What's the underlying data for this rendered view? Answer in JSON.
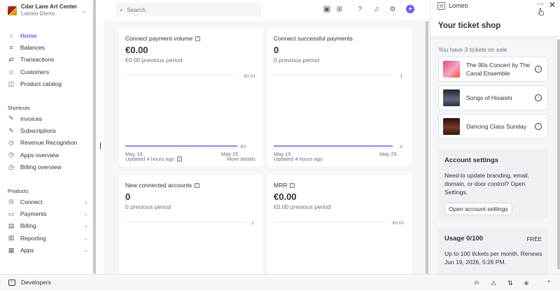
{
  "account": {
    "name": "Cdar Lane Art Center",
    "subtitle": "Lomeo Demo"
  },
  "nav": {
    "main": [
      {
        "label": "Home",
        "icon": "home-icon",
        "glyph": "⌂",
        "active": true
      },
      {
        "label": "Balances",
        "icon": "balances-icon",
        "glyph": "≡"
      },
      {
        "label": "Transactions",
        "icon": "transactions-icon",
        "glyph": "⇄"
      },
      {
        "label": "Customers",
        "icon": "customers-icon",
        "glyph": "☺"
      },
      {
        "label": "Product catalog",
        "icon": "product-catalog-icon",
        "glyph": "◫"
      }
    ],
    "shortcuts_label": "Shortcuts",
    "shortcuts": [
      {
        "label": "Invoices",
        "icon": "pin-icon",
        "glyph": "✎"
      },
      {
        "label": "Subscriptions",
        "icon": "pin-icon",
        "glyph": "✎"
      },
      {
        "label": "Revenue Recognition",
        "icon": "clock-icon",
        "glyph": "◷"
      },
      {
        "label": "Apps overview",
        "icon": "clock-icon",
        "glyph": "◷"
      },
      {
        "label": "Billing overview",
        "icon": "clock-icon",
        "glyph": "◷"
      }
    ],
    "products_label": "Products",
    "products": [
      {
        "label": "Connect",
        "icon": "connect-icon",
        "glyph": "◎"
      },
      {
        "label": "Payments",
        "icon": "payments-icon",
        "glyph": "▭"
      },
      {
        "label": "Billing",
        "icon": "billing-icon",
        "glyph": "▤"
      },
      {
        "label": "Reporting",
        "icon": "reporting-icon",
        "glyph": "▥"
      },
      {
        "label": "Apps",
        "icon": "apps-icon",
        "glyph": "▦"
      }
    ]
  },
  "search": {
    "placeholder": "Search"
  },
  "cards": [
    {
      "title": "Connect payment volume",
      "value": "€0.00",
      "previous": "€0.00 previous period",
      "top_label": "€0.01",
      "bottom_label": "€0",
      "x_start": "May 19",
      "x_end": "May 25",
      "updated": "Updated 4 hours ago",
      "more": "More details"
    },
    {
      "title": "Connect successful payments",
      "value": "0",
      "previous": "0 previous period",
      "top_label": "1",
      "bottom_label": "0",
      "x_start": "May 19",
      "x_end": "May 25",
      "updated": "Updated 4 hours ago"
    },
    {
      "title": "New connected accounts",
      "value": "0",
      "previous": "0 previous period",
      "top_label": "1"
    },
    {
      "title": "MRR",
      "value": "€0.00",
      "previous": "€0.00 previous period",
      "top_label": "€0.01"
    }
  ],
  "chart_data": [
    {
      "type": "line",
      "title": "Connect payment volume",
      "x": [
        "May 19",
        "May 25"
      ],
      "series": [
        {
          "values": [
            0,
            0
          ]
        }
      ],
      "ylim": [
        0,
        0.01
      ],
      "yticks": [
        "€0",
        "€0.01"
      ]
    },
    {
      "type": "line",
      "title": "Connect successful payments",
      "x": [
        "May 19",
        "May 25"
      ],
      "series": [
        {
          "values": [
            0,
            0
          ]
        }
      ],
      "ylim": [
        0,
        1
      ],
      "yticks": [
        "0",
        "1"
      ]
    }
  ],
  "panel": {
    "app_name": "Lomeo",
    "title": "Your ticket shop",
    "tickets_heading": "You have 3 tickets on sale",
    "tickets": [
      {
        "name": "The 90s Concert by The Canal Ensemble",
        "color": "#e8456b"
      },
      {
        "name": "Songs of Hisaishi",
        "color": "#3b3f4c"
      },
      {
        "name": "Dancing Class Sunday",
        "color": "#5a2a1f"
      }
    ],
    "account_settings": {
      "title": "Account settings",
      "body": "Need to update branding, email, domain, or door control? Open Settings.",
      "button": "Open account settings"
    },
    "usage": {
      "title": "Usage 0/100",
      "plan": "FREE",
      "body": "Up to 100 tickets per month. Renews Jun 19, 2026, 5:26 PM."
    }
  },
  "bottom": {
    "developers": "Developers"
  },
  "colors": {
    "accent": "#635bff",
    "text": "#30313d",
    "muted": "#6a7383"
  }
}
